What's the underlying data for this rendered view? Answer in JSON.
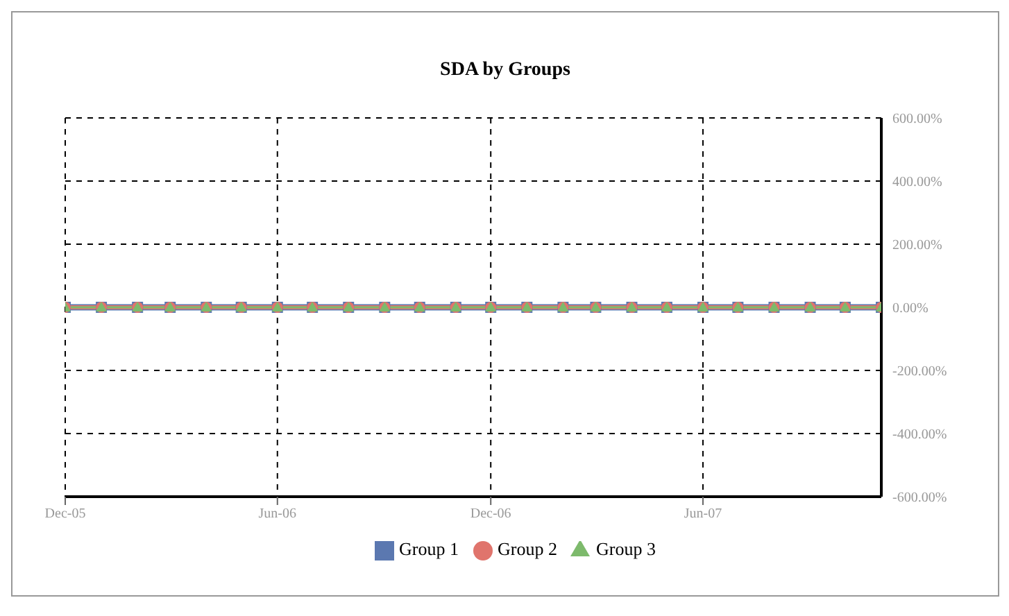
{
  "chart_data": {
    "type": "line",
    "title": "SDA by Groups",
    "x": [
      "2005-12",
      "2006-01",
      "2006-02",
      "2006-03",
      "2006-04",
      "2006-05",
      "2006-06",
      "2006-07",
      "2006-08",
      "2006-09",
      "2006-10",
      "2006-11",
      "2006-12",
      "2007-01",
      "2007-02",
      "2007-03",
      "2007-04",
      "2007-05",
      "2007-06",
      "2007-07",
      "2007-08",
      "2007-09",
      "2007-10",
      "2007-11"
    ],
    "xlim": [
      "2005-12",
      "2007-11"
    ],
    "xticks": [
      {
        "value": "2005-12",
        "label": "Dec-05"
      },
      {
        "value": "2006-06",
        "label": "Jun-06"
      },
      {
        "value": "2006-12",
        "label": "Dec-06"
      },
      {
        "value": "2007-06",
        "label": "Jun-07"
      }
    ],
    "ylim": [
      -600,
      600
    ],
    "yticks": [
      {
        "value": -600,
        "label": "-600.00%"
      },
      {
        "value": -400,
        "label": "-400.00%"
      },
      {
        "value": -200,
        "label": "-200.00%"
      },
      {
        "value": 0,
        "label": "0.00%"
      },
      {
        "value": 200,
        "label": "200.00%"
      },
      {
        "value": 400,
        "label": "400.00%"
      },
      {
        "value": 600,
        "label": "600.00%"
      }
    ],
    "grid": true,
    "legend": "bottom",
    "series": [
      {
        "name": "Group 1",
        "color": "#5b78b0",
        "marker": "square",
        "values": [
          0,
          0,
          0,
          0,
          0,
          0,
          0,
          0,
          0,
          0,
          0,
          0,
          0,
          0,
          0,
          0,
          0,
          0,
          0,
          0,
          0,
          0,
          0,
          0
        ]
      },
      {
        "name": "Group 2",
        "color": "#e0746c",
        "marker": "circle",
        "values": [
          0,
          0,
          0,
          0,
          0,
          0,
          0,
          0,
          0,
          0,
          0,
          0,
          0,
          0,
          0,
          0,
          0,
          0,
          0,
          0,
          0,
          0,
          0,
          0
        ]
      },
      {
        "name": "Group 3",
        "color": "#7dba6c",
        "marker": "triangle",
        "values": [
          0,
          0,
          0,
          0,
          0,
          0,
          0,
          0,
          0,
          0,
          0,
          0,
          0,
          0,
          0,
          0,
          0,
          0,
          0,
          0,
          0,
          0,
          0,
          0
        ]
      }
    ]
  }
}
